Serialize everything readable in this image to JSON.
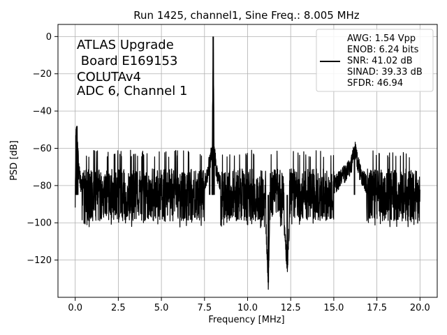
{
  "chart_data": {
    "type": "line",
    "title": "Run 1425, channel1, Sine Freq.: 8.005 MHz",
    "xlabel": "Frequency [MHz]",
    "ylabel": "PSD [dB]",
    "xlim": [
      -1.0,
      21.0
    ],
    "ylim": [
      -140.0,
      6.5
    ],
    "xticks": [
      0.0,
      2.5,
      5.0,
      7.5,
      10.0,
      12.5,
      15.0,
      17.5,
      20.0
    ],
    "xtick_labels": [
      "0.0",
      "2.5",
      "5.0",
      "7.5",
      "10.0",
      "12.5",
      "15.0",
      "17.5",
      "20.0"
    ],
    "yticks": [
      0,
      -20,
      -40,
      -60,
      -80,
      -100,
      -120
    ],
    "ytick_labels": [
      "0",
      "−20",
      "−40",
      "−60",
      "−80",
      "−100",
      "−120"
    ],
    "grid": true,
    "legend_position": "top-right",
    "annotation_lines": [
      "ATLAS Upgrade",
      " Board E169153",
      "COLUTAv4",
      "ADC 6, Channel 1"
    ],
    "legend_lines": [
      "AWG: 1.54 Vpp",
      "ENOB: 6.24 bits",
      "SNR: 41.02 dB",
      "SINAD: 39.33 dB",
      "SFDR: 46.94"
    ],
    "series_color": "#000000",
    "noise_floor_db": -85,
    "noise_envelope_db": [
      -103,
      -65
    ],
    "x": [
      0.0,
      0.05,
      0.1,
      0.15,
      0.2,
      0.3,
      0.5,
      0.8,
      1.0,
      2.0,
      3.0,
      4.0,
      5.0,
      6.0,
      7.0,
      7.5,
      7.8,
      7.95,
      8.005,
      8.06,
      8.2,
      8.5,
      9.0,
      10.0,
      11.0,
      11.2,
      11.3,
      12.0,
      12.3,
      12.5,
      13.0,
      14.0,
      15.0,
      15.5,
      16.0,
      16.2,
      16.5,
      17.0,
      18.0,
      19.0,
      20.0
    ],
    "y": [
      -83,
      -53,
      -48,
      -60,
      -72,
      -78,
      -82,
      -84,
      -85,
      -86,
      -86,
      -86,
      -85,
      -85,
      -83,
      -80,
      -68,
      -60,
      0,
      -62,
      -72,
      -82,
      -85,
      -86,
      -86,
      -132,
      -92,
      -86,
      -124,
      -86,
      -86,
      -84,
      -80,
      -75,
      -70,
      -60,
      -72,
      -82,
      -86,
      -86,
      -87
    ]
  }
}
